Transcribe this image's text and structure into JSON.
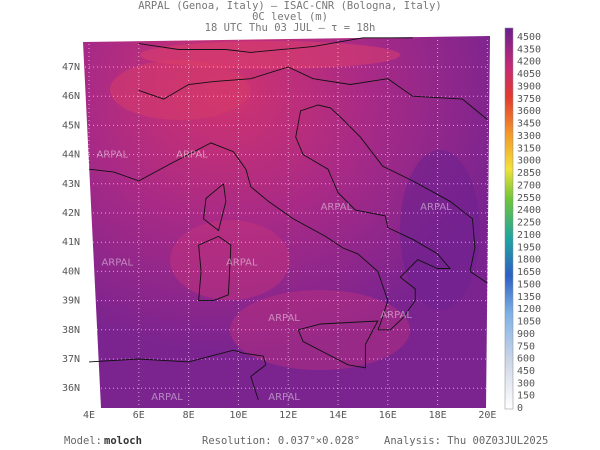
{
  "header": {
    "line1": "ARPAL (Genoa, Italy)  –  ISAC-CNR (Bologna, Italy)",
    "line2": "0C level (m)",
    "line3": "18 UTC Thu 03 JUL  –  τ = 18h"
  },
  "map": {
    "lat_labels": [
      "47N",
      "46N",
      "45N",
      "44N",
      "43N",
      "42N",
      "41N",
      "40N",
      "39N",
      "38N",
      "37N",
      "36N"
    ],
    "lon_labels": [
      "4E",
      "6E",
      "8E",
      "10E",
      "12E",
      "14E",
      "16E",
      "18E",
      "20E"
    ],
    "watermark": "ARPAL"
  },
  "colorbar": {
    "labels": [
      4500,
      4350,
      4200,
      4050,
      3900,
      3750,
      3600,
      3450,
      3300,
      3150,
      3000,
      2850,
      2700,
      2550,
      2400,
      2250,
      2100,
      1950,
      1800,
      1650,
      1500,
      1350,
      1200,
      1050,
      900,
      750,
      600,
      450,
      300,
      150,
      0
    ]
  },
  "footer": {
    "model_label": "Model:",
    "model": "moloch",
    "resolution": "Resolution: 0.037°×0.028°",
    "analysis": "Analysis: Thu 00Z03JUL2025"
  }
}
